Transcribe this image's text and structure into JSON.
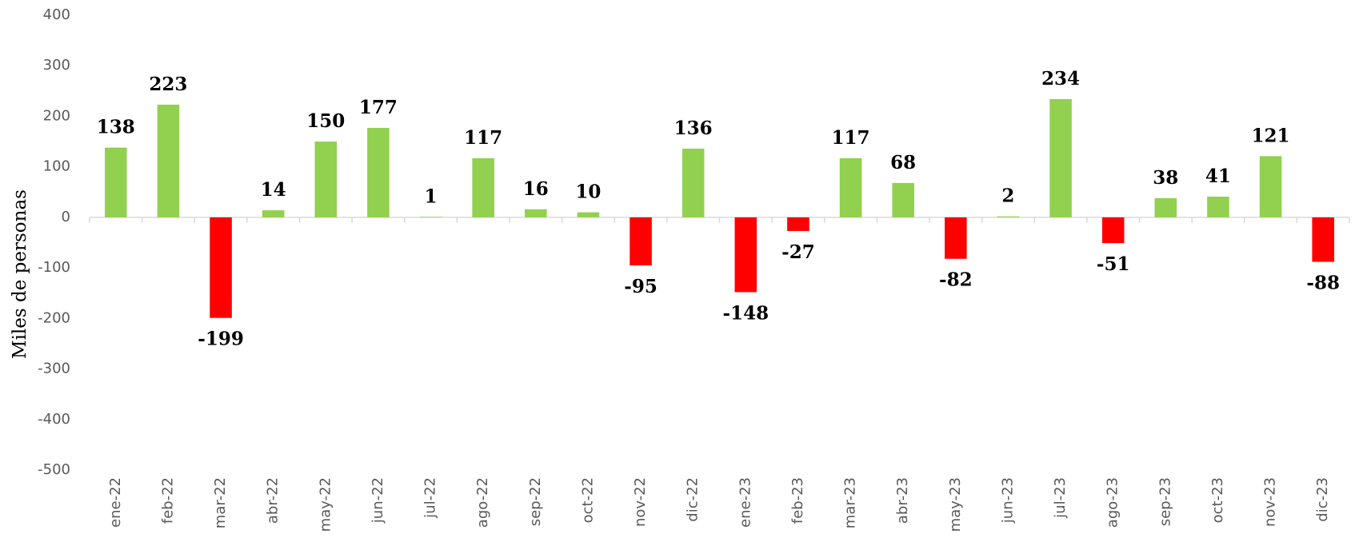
{
  "chart_data": {
    "type": "bar",
    "y_label": "Miles de personas",
    "categories": [
      "ene-22",
      "feb-22",
      "mar-22",
      "abr-22",
      "may-22",
      "jun-22",
      "jul-22",
      "ago-22",
      "sep-22",
      "oct-22",
      "nov-22",
      "dic-22",
      "ene-23",
      "feb-23",
      "mar-23",
      "abr-23",
      "may-23",
      "jun-23",
      "jul-23",
      "ago-23",
      "sep-23",
      "oct-23",
      "nov-23",
      "dic-23"
    ],
    "values": [
      138,
      223,
      -199,
      14,
      150,
      177,
      1,
      117,
      16,
      10,
      -95,
      136,
      -148,
      -27,
      117,
      68,
      -82,
      2,
      234,
      -51,
      38,
      41,
      121,
      -88
    ],
    "color": "#92d050",
    "negative_color": "#ff0000",
    "ylim": [
      -500,
      400
    ],
    "yticks": [
      -500,
      -400,
      -300,
      -200,
      -100,
      0,
      100,
      200,
      300,
      400
    ],
    "grid": false
  }
}
